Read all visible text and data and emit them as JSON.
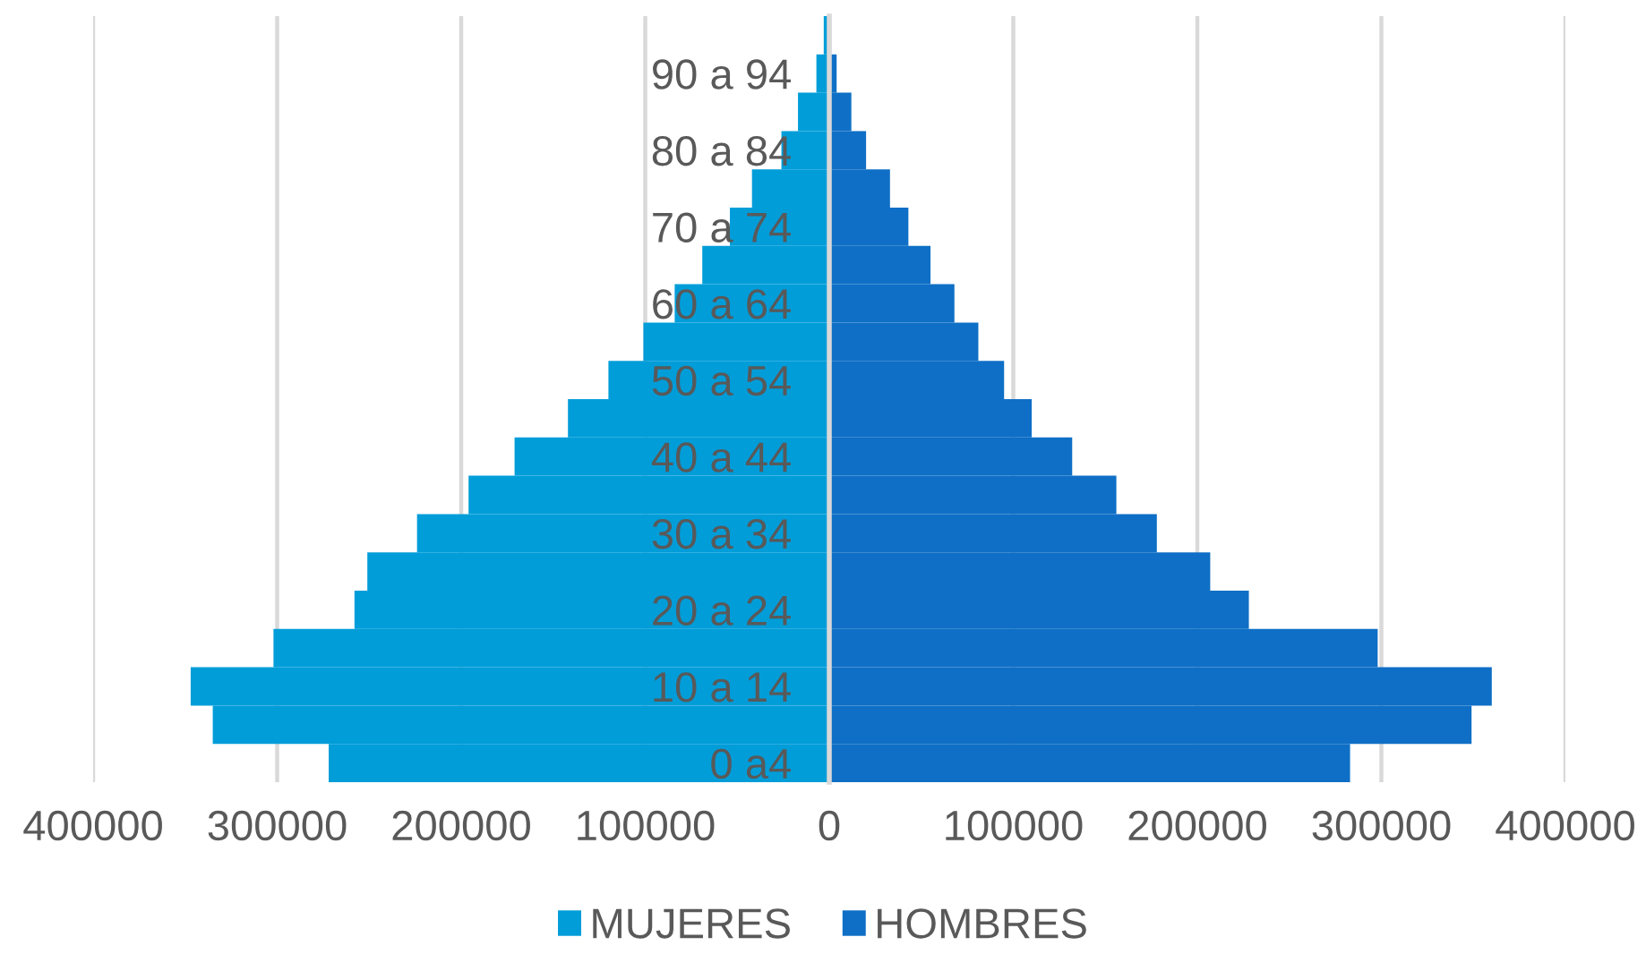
{
  "chart_data": {
    "type": "bar",
    "orientation": "horizontal",
    "stacked": true,
    "categories": [
      null,
      "90 a 94",
      null,
      "80 a 84",
      null,
      "70 a 74",
      null,
      "60 a 64",
      null,
      "50 a 54",
      null,
      "40 a 44",
      null,
      "30 a 34",
      null,
      "20 a 24",
      null,
      "10 a 14",
      null,
      "0 a4"
    ],
    "series": [
      {
        "name": "MUJERES",
        "color": "#009dd9",
        "values": [
          -3000,
          -7000,
          -17000,
          -26000,
          -42000,
          -54000,
          -69000,
          -84000,
          -101000,
          -120000,
          -142000,
          -171000,
          -196000,
          -224000,
          -251000,
          -258000,
          -302000,
          -347000,
          -335000,
          -272000
        ]
      },
      {
        "name": "HOMBRES",
        "color": "#0f6fc6",
        "values": [
          1000,
          4000,
          12000,
          20000,
          33000,
          43000,
          55000,
          68000,
          81000,
          95000,
          110000,
          132000,
          156000,
          178000,
          207000,
          228000,
          298000,
          360000,
          349000,
          283000
        ]
      }
    ],
    "xlim": [
      -400000,
      400000
    ],
    "xticks": [
      {
        "value": -400000,
        "label": "400000"
      },
      {
        "value": -300000,
        "label": "300000"
      },
      {
        "value": -200000,
        "label": "200000"
      },
      {
        "value": -100000,
        "label": "100000"
      },
      0,
      100000,
      200000,
      300000,
      400000
    ],
    "grid": "x",
    "legend": "bottom"
  }
}
